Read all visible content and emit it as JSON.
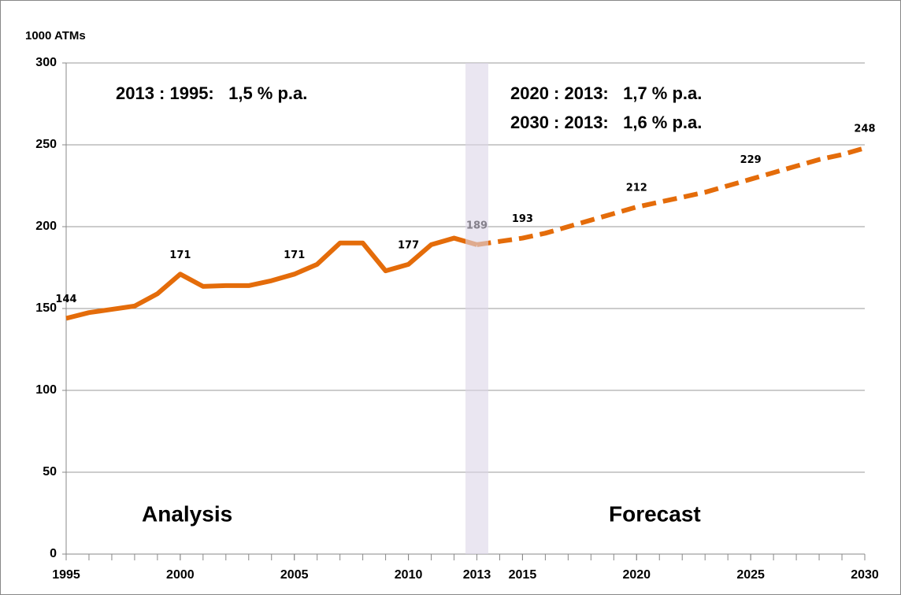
{
  "chart_data": {
    "type": "line",
    "y_label": "1000 ATMs",
    "annotations": [
      "2013 : 1995:   1,5 % p.a.",
      "2020 : 2013:   1,7 % p.a.",
      "2030 : 2013:   1,6 % p.a.",
      "Analysis",
      "Forecast"
    ],
    "series": [
      {
        "color": "#e46c0a",
        "dashed": false,
        "x": [
          1995,
          1996,
          1997,
          1998,
          1999,
          2000,
          2001,
          2002,
          2003,
          2004,
          2005,
          2006,
          2007,
          2008,
          2009,
          2010,
          2011,
          2012,
          2013
        ],
        "values": [
          144,
          147.5,
          149.5,
          151.5,
          159,
          171,
          163.5,
          164,
          164,
          167,
          171,
          177,
          190,
          190,
          173,
          177,
          189,
          193,
          189
        ],
        "value_labels": [
          "144",
          null,
          null,
          null,
          null,
          "171",
          null,
          null,
          null,
          null,
          "171",
          null,
          null,
          null,
          null,
          "177",
          null,
          null,
          "189"
        ]
      },
      {
        "color": "#e46c0a",
        "dashed": true,
        "x": [
          2013,
          2014,
          2015,
          2016,
          2017,
          2018,
          2019,
          2020,
          2021,
          2022,
          2023,
          2024,
          2025,
          2026,
          2027,
          2028,
          2029,
          2030
        ],
        "values": [
          189,
          191,
          193,
          196,
          200,
          204,
          208,
          212,
          215,
          218,
          221,
          225,
          229,
          233,
          237,
          241,
          244,
          248
        ],
        "value_labels": [
          null,
          null,
          "193",
          null,
          null,
          null,
          null,
          "212",
          null,
          null,
          null,
          null,
          "229",
          null,
          null,
          null,
          null,
          "248"
        ]
      }
    ],
    "shade": {
      "xlim": [
        2012.5,
        2013.5
      ],
      "color": "#dcd6e8"
    },
    "xlim": [
      1995,
      2030
    ],
    "xticks": [
      1995,
      2000,
      2005,
      2010,
      2013,
      2015,
      2020,
      2025,
      2030
    ],
    "ylim": [
      0,
      300
    ],
    "yticks": [
      0,
      50,
      100,
      150,
      200,
      250,
      300
    ],
    "grid": true
  }
}
